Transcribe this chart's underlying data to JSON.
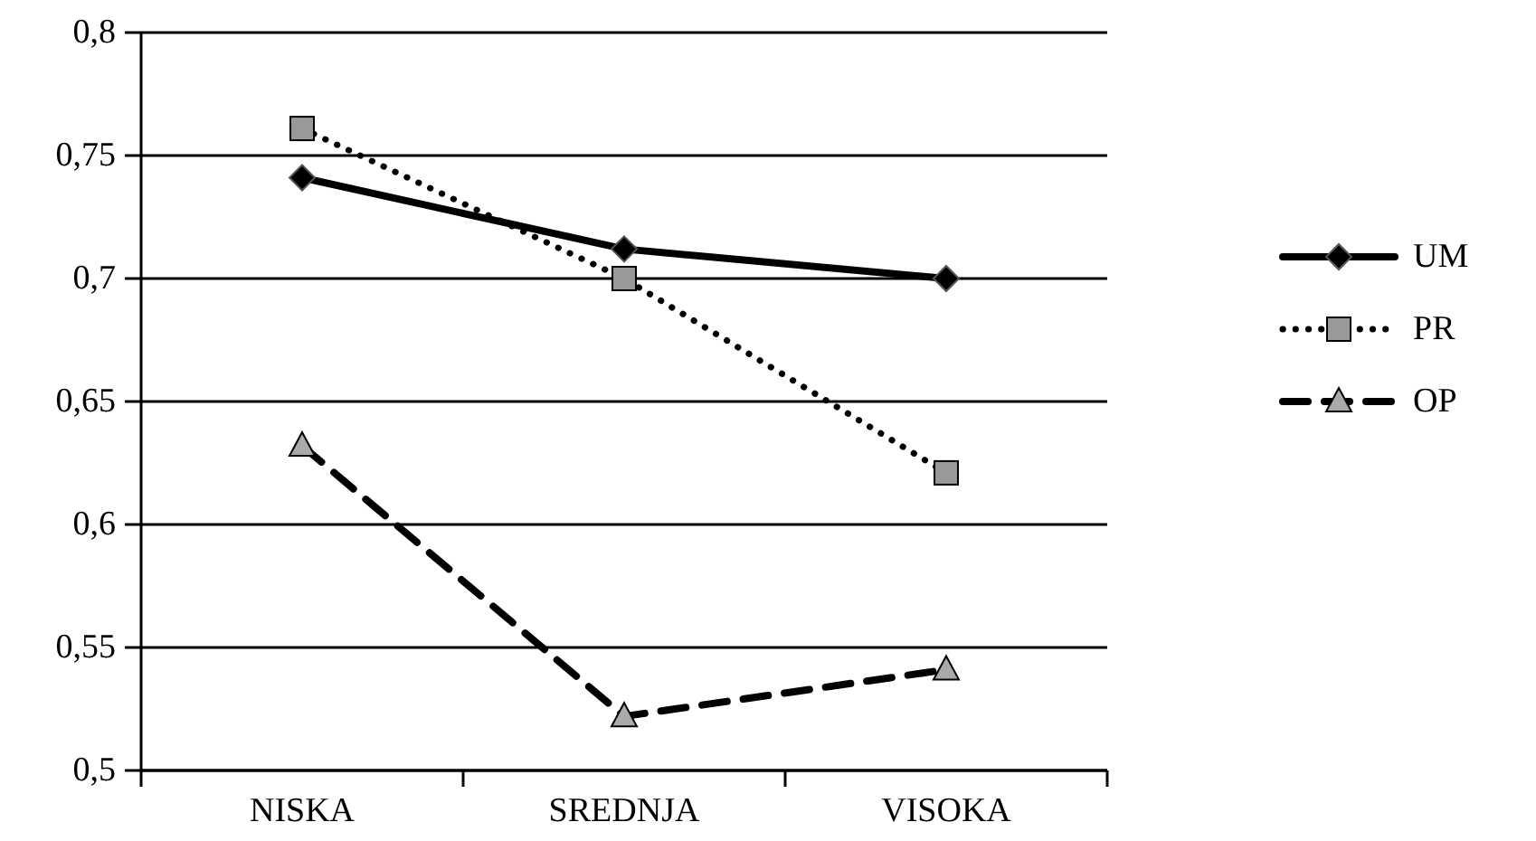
{
  "chart_data": {
    "type": "line",
    "categories": [
      "NISKA",
      "SREDNJA",
      "VISOKA"
    ],
    "series": [
      {
        "name": "UM",
        "color": "#000000",
        "values": [
          0.741,
          0.712,
          0.7
        ],
        "marker": "diamond",
        "line_style": "solid"
      },
      {
        "name": "PR",
        "color": "#000000",
        "values": [
          0.761,
          0.7,
          0.621
        ],
        "marker": "square",
        "line_style": "dotted"
      },
      {
        "name": "OP",
        "color": "#000000",
        "values": [
          0.632,
          0.522,
          0.541
        ],
        "marker": "triangle",
        "line_style": "dashed"
      }
    ],
    "ylim": [
      0.5,
      0.8
    ],
    "yticks": [
      {
        "value": 0.5,
        "label": "0,5"
      },
      {
        "value": 0.55,
        "label": "0,55"
      },
      {
        "value": 0.6,
        "label": "0,6"
      },
      {
        "value": 0.65,
        "label": "0,65"
      },
      {
        "value": 0.7,
        "label": "0,7"
      },
      {
        "value": 0.75,
        "label": "0,75"
      },
      {
        "value": 0.8,
        "label": "0,8"
      }
    ],
    "grid": "y",
    "legend": "right"
  }
}
